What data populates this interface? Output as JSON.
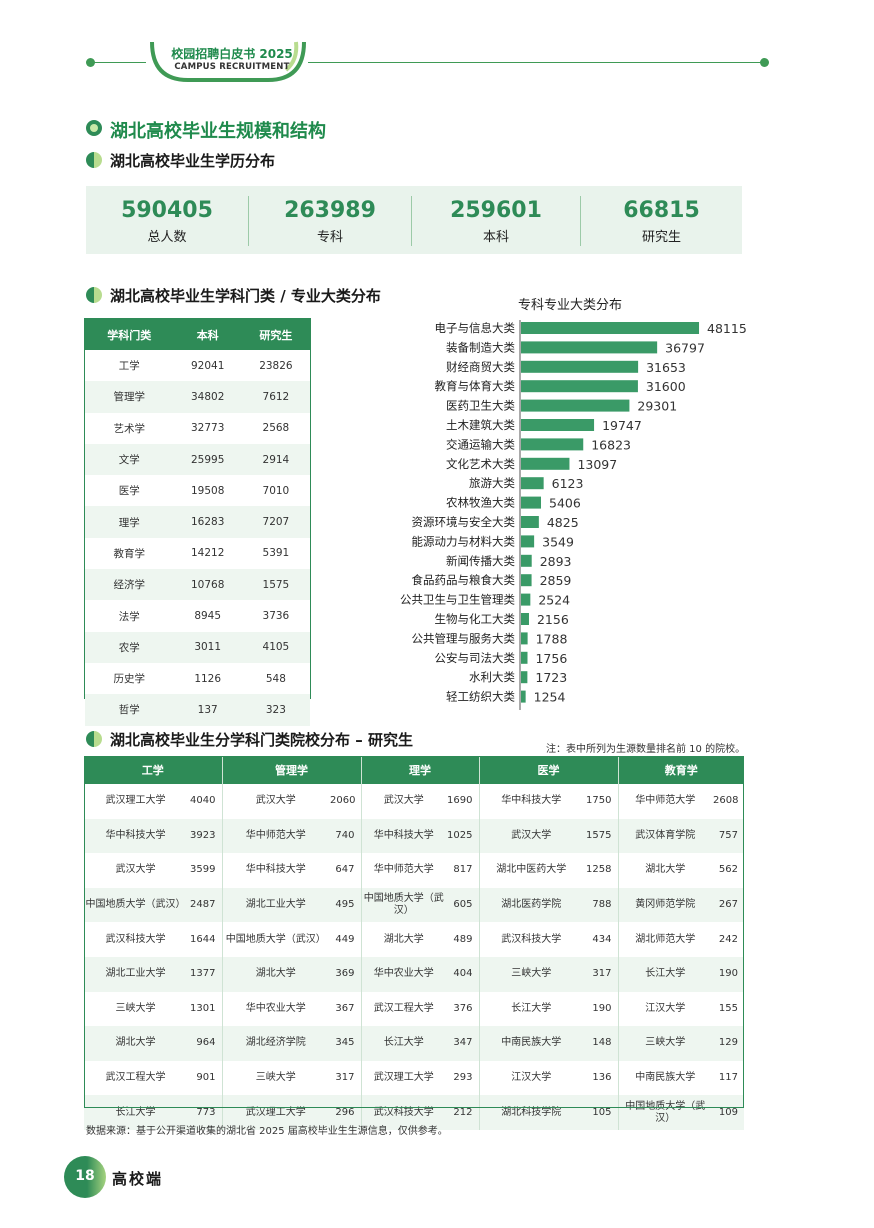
{
  "header": {
    "title": "校园招聘白皮书 2025",
    "subtitle": "CAMPUS RECRUITMENT"
  },
  "section_main": "湖北高校毕业生规模和结构",
  "section_edu": "湖北高校毕业生学历分布",
  "stats": [
    {
      "value": "590405",
      "label": "总人数"
    },
    {
      "value": "263989",
      "label": "专科"
    },
    {
      "value": "259601",
      "label": "本科"
    },
    {
      "value": "66815",
      "label": "研究生"
    }
  ],
  "section_major": "湖北高校毕业生学科门类 / 专业大类分布",
  "discipline_table": {
    "headers": [
      "学科门类",
      "本科",
      "研究生"
    ],
    "rows": [
      [
        "工学",
        "92041",
        "23826"
      ],
      [
        "管理学",
        "34802",
        "7612"
      ],
      [
        "艺术学",
        "32773",
        "2568"
      ],
      [
        "文学",
        "25995",
        "2914"
      ],
      [
        "医学",
        "19508",
        "7010"
      ],
      [
        "理学",
        "16283",
        "7207"
      ],
      [
        "教育学",
        "14212",
        "5391"
      ],
      [
        "经济学",
        "10768",
        "1575"
      ],
      [
        "法学",
        "8945",
        "3736"
      ],
      [
        "农学",
        "3011",
        "4105"
      ],
      [
        "历史学",
        "1126",
        "548"
      ],
      [
        "哲学",
        "137",
        "323"
      ]
    ]
  },
  "chart_data": {
    "type": "bar",
    "orientation": "horizontal",
    "title": "专科专业大类分布",
    "categories": [
      "电子与信息大类",
      "装备制造大类",
      "财经商贸大类",
      "教育与体育大类",
      "医药卫生大类",
      "土木建筑大类",
      "交通运输大类",
      "文化艺术大类",
      "旅游大类",
      "农林牧渔大类",
      "资源环境与安全大类",
      "能源动力与材料大类",
      "新闻传播大类",
      "食品药品与粮食大类",
      "公共卫生与卫生管理类",
      "生物与化工大类",
      "公共管理与服务大类",
      "公安与司法大类",
      "水利大类",
      "轻工纺织大类"
    ],
    "values": [
      48115,
      36797,
      31653,
      31600,
      29301,
      19747,
      16823,
      13097,
      6123,
      5406,
      4825,
      3549,
      2893,
      2859,
      2524,
      2156,
      1788,
      1756,
      1723,
      1254
    ],
    "color": "#3a9a67",
    "xlim": [
      0,
      50000
    ]
  },
  "section_grad": "湖北高校毕业生分学科门类院校分布 – 研究生",
  "note": "注：表中所列为生源数量排名前 10 的院校。",
  "grad_table": {
    "headers": [
      "工学",
      "管理学",
      "理学",
      "医学",
      "教育学"
    ],
    "rows": [
      [
        [
          "武汉理工大学",
          "4040"
        ],
        [
          "武汉大学",
          "2060"
        ],
        [
          "武汉大学",
          "1690"
        ],
        [
          "华中科技大学",
          "1750"
        ],
        [
          "华中师范大学",
          "2608"
        ]
      ],
      [
        [
          "华中科技大学",
          "3923"
        ],
        [
          "华中师范大学",
          "740"
        ],
        [
          "华中科技大学",
          "1025"
        ],
        [
          "武汉大学",
          "1575"
        ],
        [
          "武汉体育学院",
          "757"
        ]
      ],
      [
        [
          "武汉大学",
          "3599"
        ],
        [
          "华中科技大学",
          "647"
        ],
        [
          "华中师范大学",
          "817"
        ],
        [
          "湖北中医药大学",
          "1258"
        ],
        [
          "湖北大学",
          "562"
        ]
      ],
      [
        [
          "中国地质大学（武汉）",
          "2487"
        ],
        [
          "湖北工业大学",
          "495"
        ],
        [
          "中国地质大学（武汉）",
          "605"
        ],
        [
          "湖北医药学院",
          "788"
        ],
        [
          "黄冈师范学院",
          "267"
        ]
      ],
      [
        [
          "武汉科技大学",
          "1644"
        ],
        [
          "中国地质大学（武汉）",
          "449"
        ],
        [
          "湖北大学",
          "489"
        ],
        [
          "武汉科技大学",
          "434"
        ],
        [
          "湖北师范大学",
          "242"
        ]
      ],
      [
        [
          "湖北工业大学",
          "1377"
        ],
        [
          "湖北大学",
          "369"
        ],
        [
          "华中农业大学",
          "404"
        ],
        [
          "三峡大学",
          "317"
        ],
        [
          "长江大学",
          "190"
        ]
      ],
      [
        [
          "三峡大学",
          "1301"
        ],
        [
          "华中农业大学",
          "367"
        ],
        [
          "武汉工程大学",
          "376"
        ],
        [
          "长江大学",
          "190"
        ],
        [
          "江汉大学",
          "155"
        ]
      ],
      [
        [
          "湖北大学",
          "964"
        ],
        [
          "湖北经济学院",
          "345"
        ],
        [
          "长江大学",
          "347"
        ],
        [
          "中南民族大学",
          "148"
        ],
        [
          "三峡大学",
          "129"
        ]
      ],
      [
        [
          "武汉工程大学",
          "901"
        ],
        [
          "三峡大学",
          "317"
        ],
        [
          "武汉理工大学",
          "293"
        ],
        [
          "江汉大学",
          "136"
        ],
        [
          "中南民族大学",
          "117"
        ]
      ],
      [
        [
          "长江大学",
          "773"
        ],
        [
          "武汉理工大学",
          "296"
        ],
        [
          "武汉科技大学",
          "212"
        ],
        [
          "湖北科技学院",
          "105"
        ],
        [
          "中国地质大学（武汉）",
          "109"
        ]
      ]
    ]
  },
  "source": "数据来源：基于公开渠道收集的湖北省 2025 届高校毕业生生源信息，仅供参考。",
  "footer": {
    "page": "18",
    "label": "高校端"
  }
}
